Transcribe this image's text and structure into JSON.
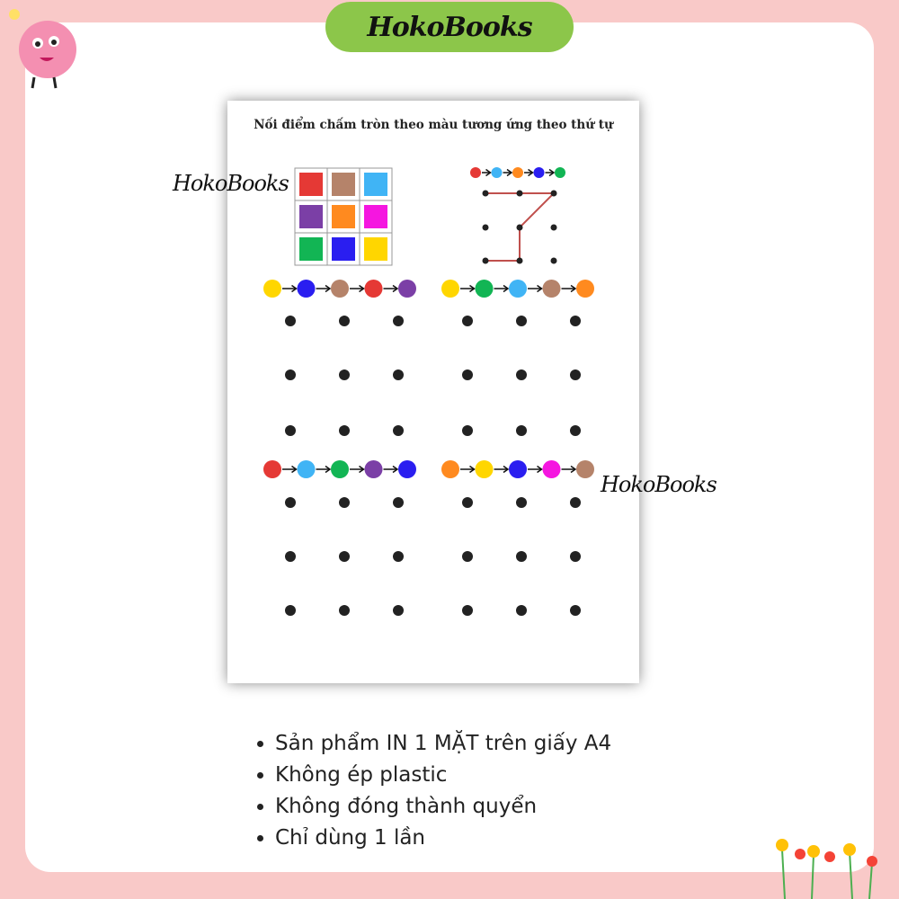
{
  "header": {
    "brand": "HokoBooks"
  },
  "worksheet": {
    "title": "Nối điểm chấm tròn theo màu tương ứng theo thứ tự",
    "watermark": "HokoBooks",
    "colors": {
      "red": "#e53935",
      "brown": "#b5836a",
      "lightblue": "#40b4f5",
      "purple": "#7b3fa6",
      "orange": "#ff8a1f",
      "magenta": "#f516e0",
      "green": "#12b554",
      "blue": "#2a1ef0",
      "yellow": "#ffd600"
    },
    "color_grid": [
      [
        "red",
        "brown",
        "lightblue"
      ],
      [
        "purple",
        "orange",
        "magenta"
      ],
      [
        "green",
        "blue",
        "yellow"
      ]
    ],
    "example_sequence": [
      "red",
      "lightblue",
      "orange",
      "blue",
      "green"
    ],
    "puzzles": [
      {
        "sequence": [
          "yellow",
          "blue",
          "brown",
          "red",
          "purple"
        ]
      },
      {
        "sequence": [
          "yellow",
          "green",
          "lightblue",
          "brown",
          "orange"
        ]
      },
      {
        "sequence": [
          "red",
          "lightblue",
          "green",
          "purple",
          "blue"
        ]
      },
      {
        "sequence": [
          "orange",
          "yellow",
          "blue",
          "magenta",
          "brown"
        ]
      }
    ]
  },
  "features": [
    "Sản phẩm IN 1 MẶT trên giấy A4",
    "Không ép plastic",
    "Không đóng thành quyển",
    "Chỉ dùng 1 lần"
  ]
}
